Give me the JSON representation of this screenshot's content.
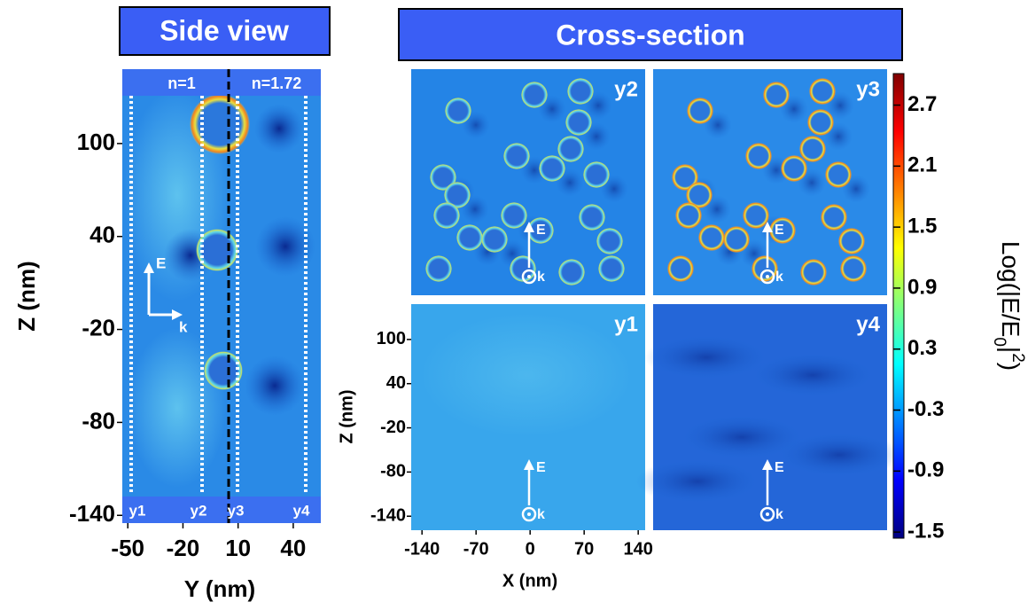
{
  "side_view": {
    "title": "Side view",
    "media": [
      "n=1",
      "n=1.72"
    ],
    "lines": [
      "y1",
      "y2",
      "y3",
      "y4"
    ],
    "field": {
      "E": "E",
      "k": "k"
    },
    "xlabel": "Y (nm)",
    "ylabel": "Z (nm)",
    "xlim": [
      -53,
      55
    ],
    "ylim": [
      -145,
      148
    ],
    "xticks": [
      -50,
      -20,
      10,
      40
    ],
    "yticks": [
      100,
      40,
      -20,
      -80,
      -140
    ]
  },
  "cross_section": {
    "title": "Cross-section",
    "panels": [
      "y2",
      "y3",
      "y1",
      "y4"
    ],
    "field": {
      "E": "E",
      "k": "k"
    },
    "xlabel": "X (nm)",
    "ylabel": "Z (nm)",
    "xlim": [
      -154,
      149
    ],
    "ylim": [
      -159,
      148
    ],
    "xticks": [
      -140,
      -70,
      0,
      70,
      140
    ],
    "yticks": [
      100,
      40,
      -20,
      -80,
      -140
    ]
  },
  "colorbar": {
    "label": [
      "Log(|E/E",
      "0",
      "|",
      "2",
      ")"
    ],
    "lim": [
      -1.56,
      3.01
    ],
    "ticks": [
      2.7,
      2.1,
      1.5,
      0.9,
      0.3,
      -0.3,
      -0.9,
      -1.5
    ]
  }
}
